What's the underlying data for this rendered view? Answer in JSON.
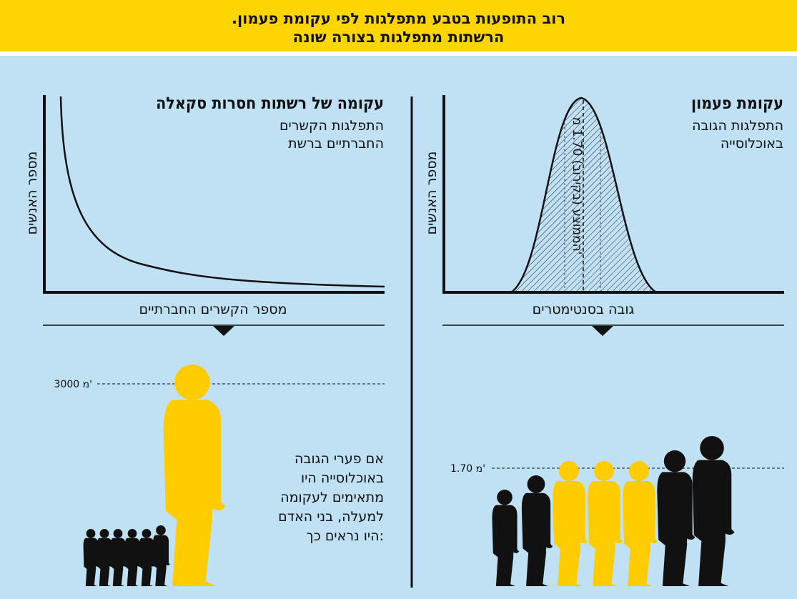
{
  "header": {
    "title_line1": "רוב התופעות בטבע מתפלגות לפי עקומת פעמון.",
    "title_line2": "הרשתות מתפלגות בצורה שונה"
  },
  "right_chart": {
    "title": "עקומת פעמון",
    "subtitle_line1": "התפלגות הגובה",
    "subtitle_line2": "באוכלוסייה",
    "y_label": "מספר האנשים",
    "x_label": "גובה בסנטימטרים",
    "mean_label": "הממוצע (בקירוב) 1.70 מ'"
  },
  "left_chart": {
    "title": "עקומה של רשתות חסרות סקאלה",
    "subtitle_line1": "התפלגות הקשרים",
    "subtitle_line2": "החברתיים ברשת",
    "y_label": "מספר האנשים",
    "x_label": "מספר הקשרים החברתיים"
  },
  "bottom_right": {
    "height_label": "1.70 מ'"
  },
  "bottom_left": {
    "height_label": "3000 מ'",
    "note_lines": [
      "אם פערי הגובה",
      "באוכלוסייה היו",
      "מתאימים לעקומה",
      "למעלה, בני האדם",
      "היו נראים כך:"
    ]
  },
  "colors": {
    "header_yellow": "#ffd500",
    "panel_blue": "#c0e0f4",
    "figure_yellow": "#ffcc00",
    "figure_black": "#111111"
  }
}
